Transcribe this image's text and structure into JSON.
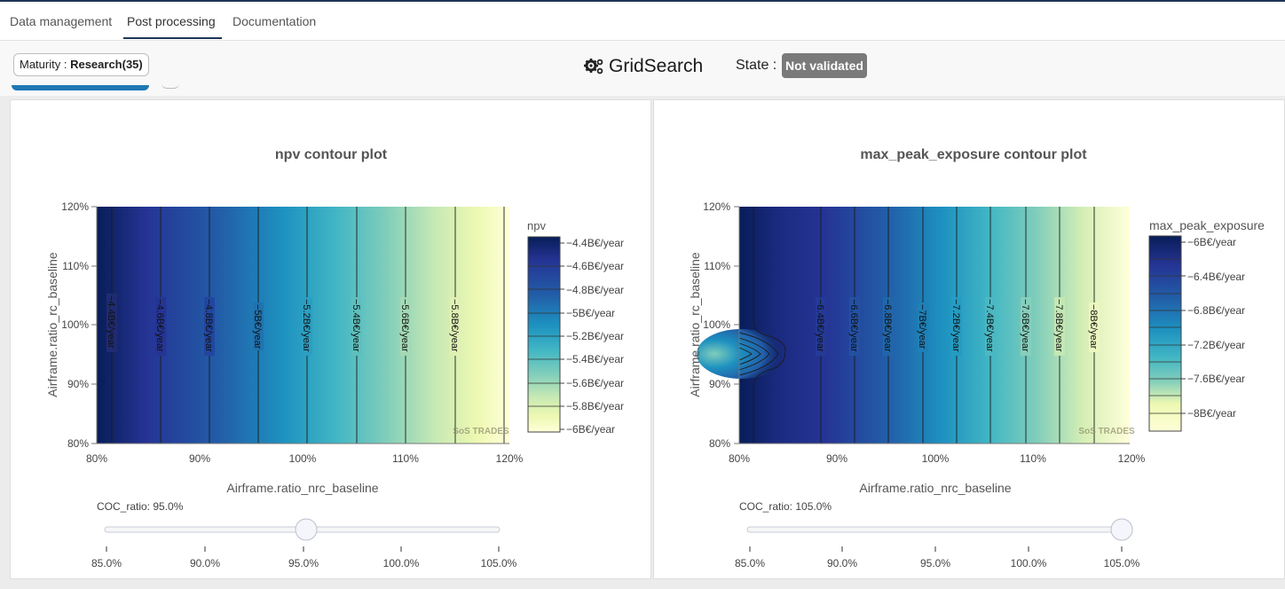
{
  "tabs": [
    {
      "label": "Data management"
    },
    {
      "label": "Post processing",
      "active": true
    },
    {
      "label": "Documentation"
    }
  ],
  "header": {
    "maturity_label": "Maturity : ",
    "maturity_value": "Research(35)",
    "title": "GridSearch",
    "title_icon": "gears-icon",
    "state_label": "State : ",
    "state_value": "Not validated"
  },
  "plots": [
    {
      "title": "npv contour plot",
      "xlabel": "Airframe.ratio_nrc_baseline",
      "ylabel": "Airframe.ratio_rc_baseline",
      "x_ticks": [
        "80%",
        "90%",
        "100%",
        "110%",
        "120%"
      ],
      "y_ticks": [
        "120%",
        "110%",
        "100%",
        "90%",
        "80%"
      ],
      "colorbar_title": "npv",
      "colorbar_ticks": [
        "−4.4B€/year",
        "−4.6B€/year",
        "−4.8B€/year",
        "−5B€/year",
        "−5.2B€/year",
        "−5.4B€/year",
        "−5.6B€/year",
        "−5.8B€/year",
        "−6B€/year"
      ],
      "contour_labels": [
        "−4.6B€/year",
        "−4.8B€/year",
        "−5B€/year",
        "−5.2B€/year",
        "−5.4B€/year",
        "−5.6B€/year",
        "−5.8B€/year"
      ],
      "edge_label": "−4.4B€/year",
      "watermark": "SoS TRADES",
      "slider_label": "COC_ratio: 95.0%",
      "slider_ticks": [
        "85.0%",
        "90.0%",
        "95.0%",
        "100.0%",
        "105.0%"
      ],
      "slider_value": 95.0
    },
    {
      "title": "max_peak_exposure contour plot",
      "xlabel": "Airframe.ratio_nrc_baseline",
      "ylabel": "Airframe.ratio_rc_baseline",
      "x_ticks": [
        "80%",
        "90%",
        "100%",
        "110%",
        "120%"
      ],
      "y_ticks": [
        "120%",
        "110%",
        "100%",
        "90%",
        "80%"
      ],
      "colorbar_title": "max_peak_exposure",
      "colorbar_ticks": [
        "−6B€/year",
        "−6.4B€/year",
        "−6.8B€/year",
        "−7.2B€/year",
        "−7.6B€/year",
        "−8B€/year"
      ],
      "contour_labels": [
        "−6.4B€/year",
        "−6.6B€/year",
        "−6.8B€/year",
        "−7B€/year",
        "−7.2B€/year",
        "−7.4B€/year",
        "−7.6B€/year",
        "−7.8B€/year",
        "−8B€/year"
      ],
      "watermark": "SoS TRADES",
      "slider_label": "COC_ratio: 105.0%",
      "slider_ticks": [
        "85.0%",
        "90.0%",
        "95.0%",
        "100.0%",
        "105.0%"
      ],
      "slider_value": 105.0
    }
  ],
  "colors": {
    "accent": "#1d3557",
    "state_badge": "#7a7a7a",
    "colorscale": [
      "#081d58",
      "#253494",
      "#225ea8",
      "#1d91c0",
      "#41b6c4",
      "#7fcdbb",
      "#c7e9b4",
      "#edf8b1",
      "#ffffd9"
    ]
  }
}
